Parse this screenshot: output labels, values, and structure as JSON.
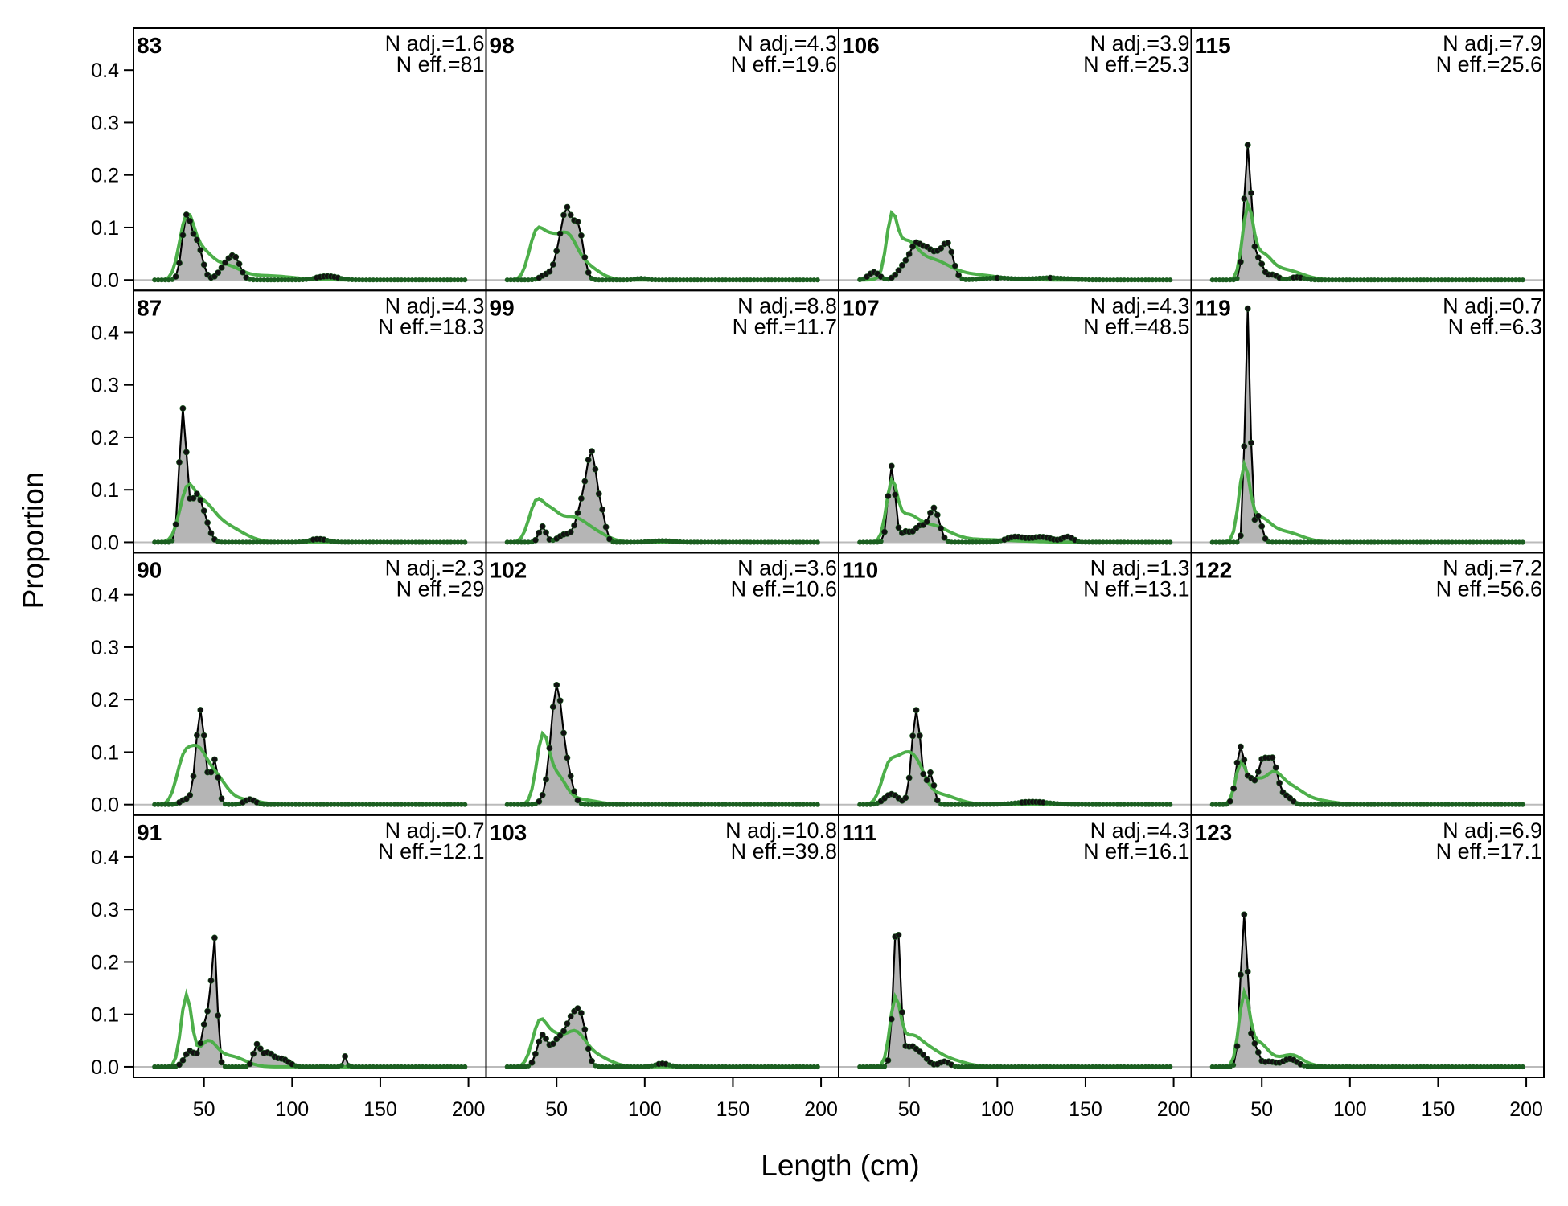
{
  "chart_data": {
    "type": "line",
    "layout": "facet-grid 4x4, columns filled top-to-bottom",
    "xlabel": "Length (cm)",
    "ylabel": "Proportion",
    "xlim": [
      10,
      210
    ],
    "ylim": [
      -0.02,
      0.48
    ],
    "xticks": [
      50,
      100,
      150,
      200
    ],
    "yticks": [
      0.0,
      0.1,
      0.2,
      0.3,
      0.4
    ],
    "grid": false,
    "x_bins": {
      "start": 22,
      "end": 198,
      "step": 2
    },
    "colors": {
      "observed_fill": "#b5b5b5",
      "observed_line": "#000000",
      "expected_line": "#4daf4a",
      "points_edge": "#1b5e20",
      "zero_line": "#bbbbbb"
    },
    "panels": [
      {
        "label": "83",
        "n_adj": "N adj.=1.6",
        "n_eff": "N eff.=81",
        "observed": {
          "peaks": [
            [
              40,
              0.115,
              2.5
            ],
            [
              46,
              0.07,
              3
            ],
            [
              63,
              0.03,
              4
            ],
            [
              68,
              0.03,
              3
            ],
            [
              120,
              0.007,
              6
            ]
          ]
        },
        "expected": {
          "peaks": [
            [
              40,
              0.105,
              4
            ],
            [
              48,
              0.05,
              6
            ],
            [
              62,
              0.025,
              8
            ],
            [
              85,
              0.008,
              15
            ]
          ]
        }
      },
      {
        "label": "87",
        "n_adj": "N adj.=4.3",
        "n_eff": "N eff.=18.3",
        "observed": {
          "peaks": [
            [
              38,
              0.25,
              2
            ],
            [
              45,
              0.08,
              3
            ],
            [
              50,
              0.04,
              3
            ],
            [
              115,
              0.006,
              5
            ]
          ]
        },
        "expected": {
          "peaks": [
            [
              40,
              0.07,
              4
            ],
            [
              48,
              0.065,
              7
            ],
            [
              62,
              0.03,
              10
            ]
          ]
        }
      },
      {
        "label": "90",
        "n_adj": "N adj.=2.3",
        "n_eff": "N eff.=29",
        "observed": {
          "peaks": [
            [
              40,
              0.01,
              3
            ],
            [
              48,
              0.18,
              2.5
            ],
            [
              56,
              0.085,
              2
            ],
            [
              76,
              0.01,
              3
            ]
          ]
        },
        "expected": {
          "peaks": [
            [
              38,
              0.07,
              4
            ],
            [
              46,
              0.09,
              5
            ],
            [
              56,
              0.05,
              6
            ],
            [
              70,
              0.01,
              10
            ]
          ]
        }
      },
      {
        "label": "91",
        "n_adj": "N adj.=0.7",
        "n_eff": "N eff.=12.1",
        "observed": {
          "peaks": [
            [
              42,
              0.03,
              3
            ],
            [
              52,
              0.1,
              3
            ],
            [
              56,
              0.205,
              1.5
            ],
            [
              80,
              0.04,
              2
            ],
            [
              86,
              0.025,
              3
            ],
            [
              94,
              0.015,
              4
            ],
            [
              130,
              0.02,
              1
            ]
          ]
        },
        "expected": {
          "peaks": [
            [
              40,
              0.135,
              3
            ],
            [
              52,
              0.045,
              5
            ],
            [
              65,
              0.02,
              8
            ]
          ]
        }
      },
      {
        "label": "98",
        "n_adj": "N adj.=4.3",
        "n_eff": "N eff.=19.6",
        "observed": {
          "peaks": [
            [
              44,
              0.01,
              3
            ],
            [
              52,
              0.06,
              3
            ],
            [
              56,
              0.1,
              2.5
            ],
            [
              62,
              0.105,
              3
            ],
            [
              98,
              0.003,
              3
            ]
          ]
        },
        "expected": {
          "peaks": [
            [
              38,
              0.075,
              4
            ],
            [
              46,
              0.07,
              5
            ],
            [
              56,
              0.065,
              5
            ],
            [
              65,
              0.03,
              8
            ]
          ]
        }
      },
      {
        "label": "99",
        "n_adj": "N adj.=8.8",
        "n_eff": "N eff.=11.7",
        "observed": {
          "peaks": [
            [
              42,
              0.03,
              2
            ],
            [
              55,
              0.015,
              4
            ],
            [
              64,
              0.06,
              3
            ],
            [
              70,
              0.165,
              3
            ],
            [
              76,
              0.04,
              2
            ],
            [
              110,
              0.003,
              6
            ]
          ]
        },
        "expected": {
          "peaks": [
            [
              38,
              0.065,
              4
            ],
            [
              46,
              0.05,
              5
            ],
            [
              58,
              0.04,
              7
            ],
            [
              70,
              0.02,
              8
            ]
          ]
        }
      },
      {
        "label": "102",
        "n_adj": "N adj.=3.6",
        "n_eff": "N eff.=10.6",
        "observed": {
          "peaks": [
            [
              45,
              0.02,
              3
            ],
            [
              50,
              0.215,
              3
            ],
            [
              56,
              0.06,
              3
            ]
          ]
        },
        "expected": {
          "peaks": [
            [
              42,
              0.12,
              3.5
            ],
            [
              50,
              0.05,
              5
            ],
            [
              62,
              0.01,
              10
            ]
          ]
        }
      },
      {
        "label": "103",
        "n_adj": "N adj.=10.8",
        "n_eff": "N eff.=39.8",
        "observed": {
          "peaks": [
            [
              42,
              0.06,
              3
            ],
            [
              50,
              0.04,
              3
            ],
            [
              58,
              0.085,
              4
            ],
            [
              64,
              0.075,
              3
            ],
            [
              110,
              0.006,
              4
            ]
          ]
        },
        "expected": {
          "peaks": [
            [
              40,
              0.075,
              4
            ],
            [
              48,
              0.05,
              5
            ],
            [
              60,
              0.06,
              6
            ],
            [
              72,
              0.02,
              8
            ]
          ]
        }
      },
      {
        "label": "106",
        "n_adj": "N adj.=3.9",
        "n_eff": "N eff.=25.3",
        "observed": {
          "peaks": [
            [
              30,
              0.015,
              3
            ],
            [
              48,
              0.03,
              4
            ],
            [
              54,
              0.055,
              3
            ],
            [
              60,
              0.05,
              3
            ],
            [
              66,
              0.04,
              3
            ],
            [
              72,
              0.065,
              3
            ],
            [
              100,
              0.004,
              8
            ],
            [
              130,
              0.004,
              10
            ]
          ]
        },
        "expected": {
          "peaks": [
            [
              40,
              0.1,
              3
            ],
            [
              48,
              0.06,
              6
            ],
            [
              62,
              0.035,
              10
            ],
            [
              85,
              0.01,
              15
            ]
          ]
        }
      },
      {
        "label": "107",
        "n_adj": "N adj.=4.3",
        "n_eff": "N eff.=48.5",
        "observed": {
          "peaks": [
            [
              40,
              0.145,
              2
            ],
            [
              48,
              0.02,
              3
            ],
            [
              56,
              0.03,
              3
            ],
            [
              64,
              0.065,
              3
            ],
            [
              110,
              0.01,
              5
            ],
            [
              125,
              0.01,
              6
            ],
            [
              140,
              0.01,
              3
            ]
          ]
        },
        "expected": {
          "peaks": [
            [
              40,
              0.1,
              3
            ],
            [
              48,
              0.04,
              6
            ],
            [
              62,
              0.03,
              10
            ],
            [
              90,
              0.005,
              20
            ]
          ]
        }
      },
      {
        "label": "110",
        "n_adj": "N adj.=1.3",
        "n_eff": "N eff.=13.1",
        "observed": {
          "peaks": [
            [
              40,
              0.02,
              4
            ],
            [
              54,
              0.18,
              2.5
            ],
            [
              62,
              0.06,
              2
            ],
            [
              120,
              0.005,
              10
            ]
          ]
        },
        "expected": {
          "peaks": [
            [
              38,
              0.06,
              4
            ],
            [
              46,
              0.07,
              5
            ],
            [
              54,
              0.06,
              5
            ],
            [
              66,
              0.02,
              10
            ]
          ]
        }
      },
      {
        "label": "111",
        "n_adj": "N adj.=4.3",
        "n_eff": "N eff.=16.1",
        "observed": {
          "peaks": [
            [
              43,
              0.28,
              2
            ],
            [
              50,
              0.03,
              3
            ],
            [
              56,
              0.025,
              4
            ],
            [
              70,
              0.01,
              3
            ]
          ]
        },
        "expected": {
          "peaks": [
            [
              42,
              0.12,
              3
            ],
            [
              50,
              0.04,
              5
            ],
            [
              58,
              0.03,
              7
            ],
            [
              70,
              0.015,
              10
            ]
          ]
        }
      },
      {
        "label": "115",
        "n_adj": "N adj.=7.9",
        "n_eff": "N eff.=25.6",
        "observed": {
          "peaks": [
            [
              42,
              0.255,
              2
            ],
            [
              48,
              0.04,
              2.5
            ],
            [
              56,
              0.01,
              3
            ],
            [
              70,
              0.005,
              4
            ]
          ]
        },
        "expected": {
          "peaks": [
            [
              42,
              0.13,
              3
            ],
            [
              50,
              0.04,
              5
            ],
            [
              62,
              0.02,
              10
            ]
          ]
        }
      },
      {
        "label": "119",
        "n_adj": "N adj.=0.7",
        "n_eff": "N eff.=6.3",
        "observed": {
          "peaks": [
            [
              42,
              0.445,
              1.5
            ],
            [
              48,
              0.05,
              2
            ]
          ]
        },
        "expected": {
          "peaks": [
            [
              40,
              0.13,
              3
            ],
            [
              48,
              0.04,
              6
            ],
            [
              62,
              0.02,
              10
            ]
          ]
        }
      },
      {
        "label": "122",
        "n_adj": "N adj.=7.2",
        "n_eff": "N eff.=56.6",
        "observed": {
          "peaks": [
            [
              38,
              0.11,
              2.5
            ],
            [
              44,
              0.04,
              2
            ],
            [
              50,
              0.075,
              2.5
            ],
            [
              56,
              0.085,
              3
            ],
            [
              64,
              0.015,
              3
            ]
          ]
        },
        "expected": {
          "peaks": [
            [
              38,
              0.075,
              3
            ],
            [
              46,
              0.04,
              4
            ],
            [
              56,
              0.05,
              5
            ],
            [
              66,
              0.03,
              7
            ],
            [
              80,
              0.008,
              10
            ]
          ]
        }
      },
      {
        "label": "123",
        "n_adj": "N adj.=6.9",
        "n_eff": "N eff.=17.1",
        "observed": {
          "peaks": [
            [
              40,
              0.29,
              2
            ],
            [
              46,
              0.04,
              2
            ],
            [
              54,
              0.01,
              4
            ],
            [
              66,
              0.015,
              4
            ]
          ]
        },
        "expected": {
          "peaks": [
            [
              40,
              0.13,
              3
            ],
            [
              48,
              0.04,
              5
            ],
            [
              62,
              0.015,
              10
            ],
            [
              68,
              0.01,
              5
            ]
          ]
        }
      }
    ]
  }
}
